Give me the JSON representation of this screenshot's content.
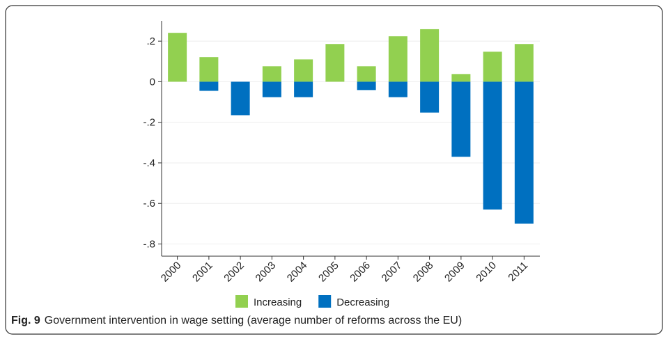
{
  "chart_data": {
    "type": "bar",
    "categories": [
      "2000",
      "2001",
      "2002",
      "2003",
      "2004",
      "2005",
      "2006",
      "2007",
      "2008",
      "2009",
      "2010",
      "2011"
    ],
    "series": [
      {
        "name": "Increasing",
        "color": "#92d050",
        "values": [
          0.241,
          0.121,
          0,
          0.076,
          0.11,
          0.186,
          0.076,
          0.224,
          0.259,
          0.038,
          0.148,
          0.186
        ]
      },
      {
        "name": "Decreasing",
        "color": "#0070c0",
        "values": [
          0,
          -0.045,
          -0.165,
          -0.076,
          -0.076,
          0,
          -0.041,
          -0.076,
          -0.152,
          -0.37,
          -0.63,
          -0.7
        ]
      }
    ],
    "ylim": [
      -0.86,
      0.3
    ],
    "yticks": [
      {
        "value": 0.2,
        "label": ".2"
      },
      0,
      {
        "value": -0.2,
        "label": "-.2"
      },
      {
        "value": -0.4,
        "label": "-.4"
      },
      {
        "value": -0.6,
        "label": "-.6"
      },
      {
        "value": -0.8,
        "label": "-.8"
      }
    ],
    "grid": true,
    "legend": "bottom",
    "caption_label": "Fig. 9",
    "caption": "Government intervention in wage setting (average number of reforms across the EU)"
  }
}
